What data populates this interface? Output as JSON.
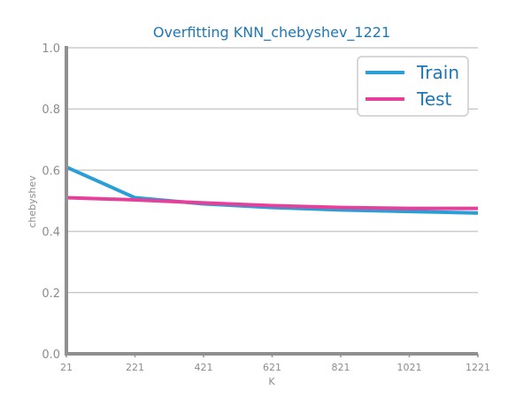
{
  "chart_data": {
    "type": "line",
    "title": "Overfitting KNN_chebyshev_1221",
    "xlabel": "K",
    "ylabel": "chebyshev",
    "x": [
      21,
      221,
      421,
      621,
      821,
      1021,
      1221
    ],
    "x_tick_labels": [
      "21",
      "221",
      "421",
      "621",
      "821",
      "1021",
      "1221"
    ],
    "y_tick_labels": [
      "0.0",
      "0.2",
      "0.4",
      "0.6",
      "0.8",
      "1.0"
    ],
    "y_ticks": [
      0.0,
      0.2,
      0.4,
      0.6,
      0.8,
      1.0
    ],
    "xlim": [
      21,
      1221
    ],
    "ylim": [
      0.0,
      1.0
    ],
    "grid": "horizontal",
    "legend_position": "top-right",
    "series": [
      {
        "name": "Train",
        "color": "#2a9fd6",
        "values": [
          0.61,
          0.51,
          0.49,
          0.478,
          0.47,
          0.465,
          0.46
        ]
      },
      {
        "name": "Test",
        "color": "#e5419a",
        "values": [
          0.51,
          0.503,
          0.493,
          0.484,
          0.478,
          0.475,
          0.475
        ]
      }
    ]
  }
}
